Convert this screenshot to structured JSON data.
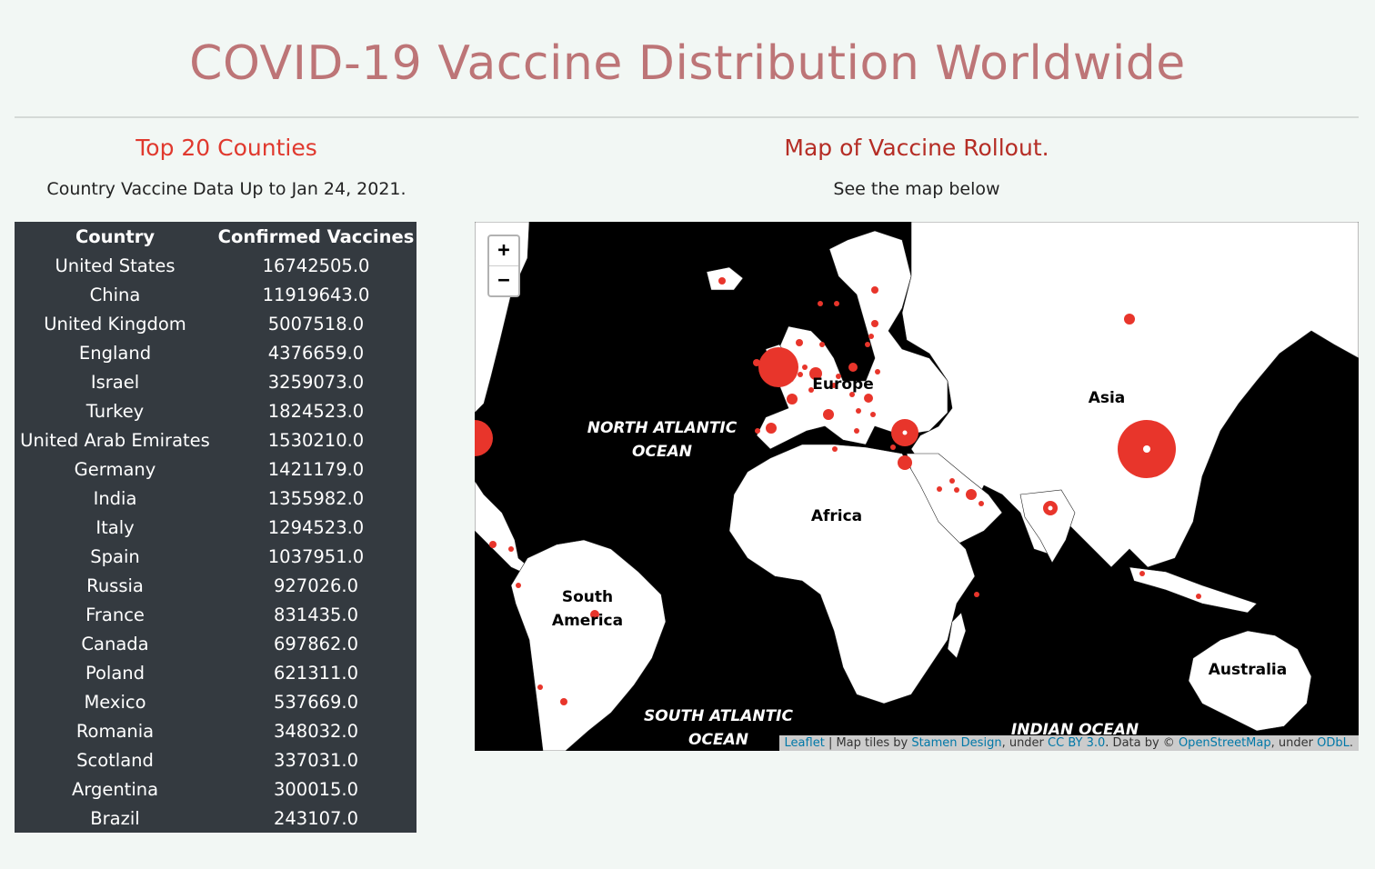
{
  "page": {
    "title": "COVID-19 Vaccine Distribution Worldwide"
  },
  "left": {
    "heading": "Top 20 Counties",
    "subheading": "Country Vaccine Data Up to Jan 24, 2021."
  },
  "right": {
    "heading": "Map of Vaccine Rollout.",
    "subheading": "See the map below"
  },
  "table": {
    "headers": [
      "Country",
      "Confirmed Vaccines"
    ],
    "rows": [
      [
        "United States",
        "16742505.0"
      ],
      [
        "China",
        "11919643.0"
      ],
      [
        "United Kingdom",
        "5007518.0"
      ],
      [
        "England",
        "4376659.0"
      ],
      [
        "Israel",
        "3259073.0"
      ],
      [
        "Turkey",
        "1824523.0"
      ],
      [
        "United Arab Emirates",
        "1530210.0"
      ],
      [
        "Germany",
        "1421179.0"
      ],
      [
        "India",
        "1355982.0"
      ],
      [
        "Italy",
        "1294523.0"
      ],
      [
        "Spain",
        "1037951.0"
      ],
      [
        "Russia",
        "927026.0"
      ],
      [
        "France",
        "831435.0"
      ],
      [
        "Canada",
        "697862.0"
      ],
      [
        "Poland",
        "621311.0"
      ],
      [
        "Mexico",
        "537669.0"
      ],
      [
        "Romania",
        "348032.0"
      ],
      [
        "Scotland",
        "337031.0"
      ],
      [
        "Argentina",
        "300015.0"
      ],
      [
        "Brazil",
        "243107.0"
      ]
    ]
  },
  "map": {
    "zoom_in": "+",
    "zoom_out": "−",
    "labels": {
      "north_atlantic_1": "NORTH ATLANTIC",
      "north_atlantic_2": "OCEAN",
      "south_atlantic_1": "SOUTH ATLANTIC",
      "south_atlantic_2": "OCEAN",
      "indian_ocean": "INDIAN OCEAN",
      "europe": "Europe",
      "asia": "Asia",
      "africa": "Africa",
      "south_america_1": "South",
      "south_america_2": "America",
      "australia": "Australia"
    },
    "attribution": {
      "leaflet": "Leaflet",
      "sep": " | Map tiles by ",
      "stamen": "Stamen Design",
      "under1": ", under ",
      "ccby": "CC BY 3.0",
      "data_by": ". Data by © ",
      "osm": "OpenStreetMap",
      "under2": ", under ",
      "odbl": "ODbL",
      "end": "."
    },
    "marker_color": "#e8352b",
    "land_color": "#ffffff",
    "water_color": "#000000"
  }
}
